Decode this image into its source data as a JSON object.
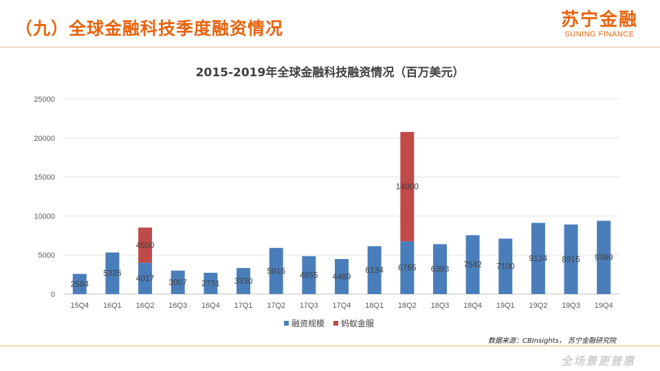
{
  "header": {
    "title": "（九）全球金融科技季度融资情况",
    "logo_cn": "苏宁金融",
    "logo_en": "SUNING FINANCE"
  },
  "footer": {
    "source": "数据来源：CBInsights， 苏宁金融研究院",
    "slogan": "全场景更普惠"
  },
  "colors": {
    "accent": "#e9630c",
    "series_blue": "#4a7ebb",
    "series_red": "#be4b48"
  },
  "chart_data": {
    "type": "bar",
    "stacked": true,
    "title": "2015-2019年全球金融科技融资情况（百万美元）",
    "categories": [
      "15Q4",
      "16Q1",
      "16Q2",
      "16Q3",
      "16Q4",
      "17Q1",
      "17Q2",
      "17Q3",
      "17Q4",
      "18Q1",
      "18Q2",
      "18Q3",
      "18Q4",
      "19Q1",
      "19Q2",
      "19Q3",
      "19Q4"
    ],
    "series": [
      {
        "name": "融资规模",
        "values": [
          2584,
          5326,
          4017,
          3007,
          2731,
          3330,
          5916,
          4855,
          4489,
          6134,
          6765,
          6393,
          7542,
          7100,
          9124,
          8915,
          9389
        ]
      },
      {
        "name": "蚂蚁金服",
        "values": [
          null,
          null,
          4500,
          null,
          null,
          null,
          null,
          null,
          null,
          null,
          14000,
          null,
          null,
          null,
          null,
          null,
          null
        ]
      }
    ],
    "ylim": [
      0,
      25000
    ],
    "yticks": [
      0,
      5000,
      10000,
      15000,
      20000,
      25000
    ],
    "xlabel": "",
    "ylabel": "",
    "grid": true,
    "legend": "bottom"
  }
}
